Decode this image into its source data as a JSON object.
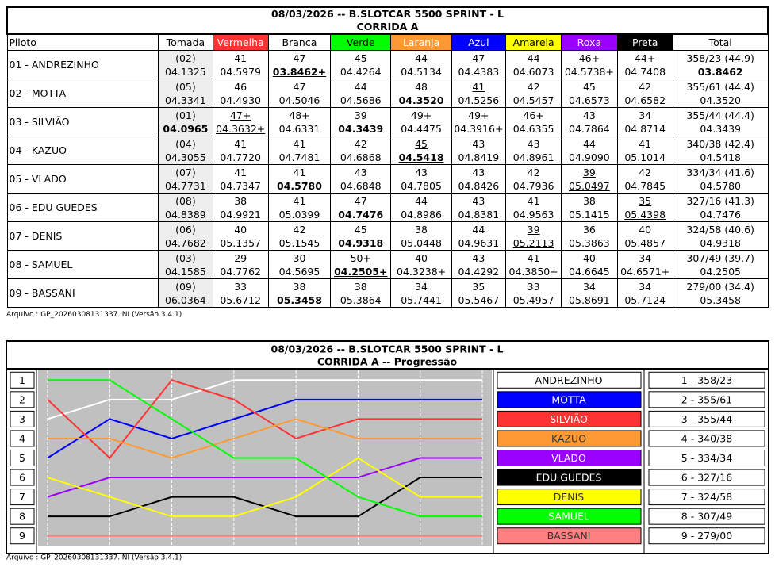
{
  "table": {
    "title": [
      "08/03/2026 -- B.SLOTCAR 5500 SPRINT - L",
      "CORRIDA A"
    ],
    "header": [
      "Piloto",
      "Tomada",
      "Vermelha",
      "Branca",
      "Verde",
      "Laranja",
      "Azul",
      "Amarela",
      "Roxa",
      "Preta",
      "Total"
    ],
    "rows": [
      [
        "01 - ANDREZINHO",
        [
          "(02)",
          "04.1325"
        ],
        [
          "41",
          "04.5979"
        ],
        [
          "47",
          "03.8462+"
        ],
        [
          "45",
          "04.4264"
        ],
        [
          "44",
          "04.5134"
        ],
        [
          "47",
          "04.4383"
        ],
        [
          "44",
          "04.6073"
        ],
        [
          "46+",
          "04.5738+"
        ],
        [
          "44+",
          "04.7408"
        ],
        [
          "358/23 (44.9)",
          "03.8462"
        ]
      ],
      [
        "02 - MOTTA",
        [
          "(05)",
          "04.3341"
        ],
        [
          "46",
          "04.4930"
        ],
        [
          "47",
          "04.5046"
        ],
        [
          "44",
          "04.5686"
        ],
        [
          "48",
          "04.3520"
        ],
        [
          "41",
          "04.5256"
        ],
        [
          "42",
          "04.5457"
        ],
        [
          "45",
          "04.6573"
        ],
        [
          "42",
          "04.6582"
        ],
        [
          "355/61 (44.4)",
          "04.3520"
        ]
      ],
      [
        "03 - SILVIÃO",
        [
          "(01)",
          "04.0965"
        ],
        [
          "47+",
          "04.3632+"
        ],
        [
          "48+",
          "04.6331"
        ],
        [
          "39",
          "04.3439"
        ],
        [
          "49+",
          "04.4475"
        ],
        [
          "49+",
          "04.3916+"
        ],
        [
          "46+",
          "04.6355"
        ],
        [
          "43",
          "04.7864"
        ],
        [
          "34",
          "04.8714"
        ],
        [
          "355/44 (44.4)",
          "04.3439"
        ]
      ],
      [
        "04 - KAZUO",
        [
          "(04)",
          "04.3055"
        ],
        [
          "41",
          "04.7720"
        ],
        [
          "41",
          "04.7481"
        ],
        [
          "42",
          "04.6868"
        ],
        [
          "45",
          "04.5418"
        ],
        [
          "43",
          "04.8419"
        ],
        [
          "43",
          "04.8961"
        ],
        [
          "44",
          "04.9090"
        ],
        [
          "41",
          "05.1014"
        ],
        [
          "340/38 (42.4)",
          "04.5418"
        ]
      ],
      [
        "05 - VLADO",
        [
          "(07)",
          "04.7731"
        ],
        [
          "41",
          "04.7347"
        ],
        [
          "41",
          "04.5780"
        ],
        [
          "43",
          "04.6848"
        ],
        [
          "43",
          "04.7805"
        ],
        [
          "43",
          "04.8426"
        ],
        [
          "42",
          "04.7936"
        ],
        [
          "39",
          "05.0497"
        ],
        [
          "42",
          "04.7845"
        ],
        [
          "334/34 (41.6)",
          "04.5780"
        ]
      ],
      [
        "06 - EDU GUEDES",
        [
          "(08)",
          "04.8389"
        ],
        [
          "38",
          "04.9921"
        ],
        [
          "41",
          "05.0399"
        ],
        [
          "47",
          "04.7476"
        ],
        [
          "44",
          "04.8986"
        ],
        [
          "43",
          "04.8381"
        ],
        [
          "41",
          "04.9563"
        ],
        [
          "38",
          "05.1415"
        ],
        [
          "35",
          "05.4398"
        ],
        [
          "327/16 (41.3)",
          "04.7476"
        ]
      ],
      [
        "07 - DENIS",
        [
          "(06)",
          "04.7682"
        ],
        [
          "40",
          "05.1357"
        ],
        [
          "42",
          "05.1545"
        ],
        [
          "45",
          "04.9318"
        ],
        [
          "38",
          "05.0448"
        ],
        [
          "44",
          "04.9631"
        ],
        [
          "39",
          "05.2113"
        ],
        [
          "36",
          "05.3863"
        ],
        [
          "40",
          "05.4857"
        ],
        [
          "324/58 (40.6)",
          "04.9318"
        ]
      ],
      [
        "08 - SAMUEL",
        [
          "(03)",
          "04.1585"
        ],
        [
          "29",
          "04.7762"
        ],
        [
          "30",
          "04.5695"
        ],
        [
          "50+",
          "04.2505+"
        ],
        [
          "40",
          "04.3238+"
        ],
        [
          "43",
          "04.4292"
        ],
        [
          "41",
          "04.3850+"
        ],
        [
          "40",
          "04.6645"
        ],
        [
          "34",
          "04.6571+"
        ],
        [
          "307/49 (39.7)",
          "04.2505"
        ]
      ],
      [
        "09 - BASSANI",
        [
          "(09)",
          "06.0364"
        ],
        [
          "33",
          "05.6712"
        ],
        [
          "38",
          "05.3458"
        ],
        [
          "38",
          "05.3864"
        ],
        [
          "34",
          "05.7441"
        ],
        [
          "35",
          "05.5467"
        ],
        [
          "33",
          "05.4957"
        ],
        [
          "34",
          "05.8691"
        ],
        [
          "34",
          "05.7124"
        ],
        [
          "279/00 (34.4)",
          "05.3458"
        ]
      ]
    ],
    "footer": "Arquivo : GP_20260308131337.INI (Versão 3.4.1)"
  },
  "chart_data": {
    "type": "line",
    "title": "08/03/2026 -- B.SLOTCAR 5500 SPRINT - L",
    "subtitle": "CORRIDA A -- Progressão",
    "categories": [
      null,
      null,
      null,
      null,
      null,
      null,
      null,
      null
    ],
    "ylim": [
      9.5,
      0.5
    ],
    "yticks": [
      1,
      2,
      3,
      4,
      5,
      6,
      7,
      8,
      9
    ],
    "grid": true,
    "series": [
      {
        "name": "ANDREZINHO",
        "color": "#ffffff",
        "values": [
          3,
          2,
          2,
          1,
          1,
          1,
          1,
          1
        ]
      },
      {
        "name": "MOTTA",
        "color": "#0000ff",
        "values": [
          5,
          3,
          4,
          3,
          2,
          2,
          2,
          2
        ]
      },
      {
        "name": "SILVIÃO",
        "color": "#ff3333",
        "values": [
          2,
          5,
          1,
          2,
          4,
          3,
          3,
          3
        ]
      },
      {
        "name": "KAZUO",
        "color": "#ff9933",
        "values": [
          4,
          4,
          5,
          4,
          3,
          4,
          4,
          4
        ]
      },
      {
        "name": "VLADO",
        "color": "#9900ff",
        "values": [
          7,
          6,
          6,
          6,
          6,
          6,
          5,
          5
        ]
      },
      {
        "name": "EDU GUEDES",
        "color": "#000000",
        "values": [
          8,
          8,
          7,
          7,
          8,
          8,
          6,
          6
        ]
      },
      {
        "name": "DENIS",
        "color": "#ffff00",
        "values": [
          6,
          7,
          8,
          8,
          7,
          5,
          7,
          7
        ]
      },
      {
        "name": "SAMUEL",
        "color": "#00ff00",
        "values": [
          1,
          1,
          3,
          5,
          5,
          7,
          8,
          8
        ]
      },
      {
        "name": "BASSANI",
        "color": "#ff8080",
        "values": [
          9,
          9,
          9,
          9,
          9,
          9,
          9,
          9
        ]
      }
    ],
    "results": [
      "1 - 358/23",
      "2 - 355/61",
      "3 - 355/44",
      "4 - 340/38",
      "5 - 334/34",
      "6 - 327/16",
      "7 - 324/58",
      "8 - 307/49",
      "9 - 279/00"
    ],
    "footer": "Arquivo : GP_20260308131337.INI (Versão 3.4.1)"
  }
}
